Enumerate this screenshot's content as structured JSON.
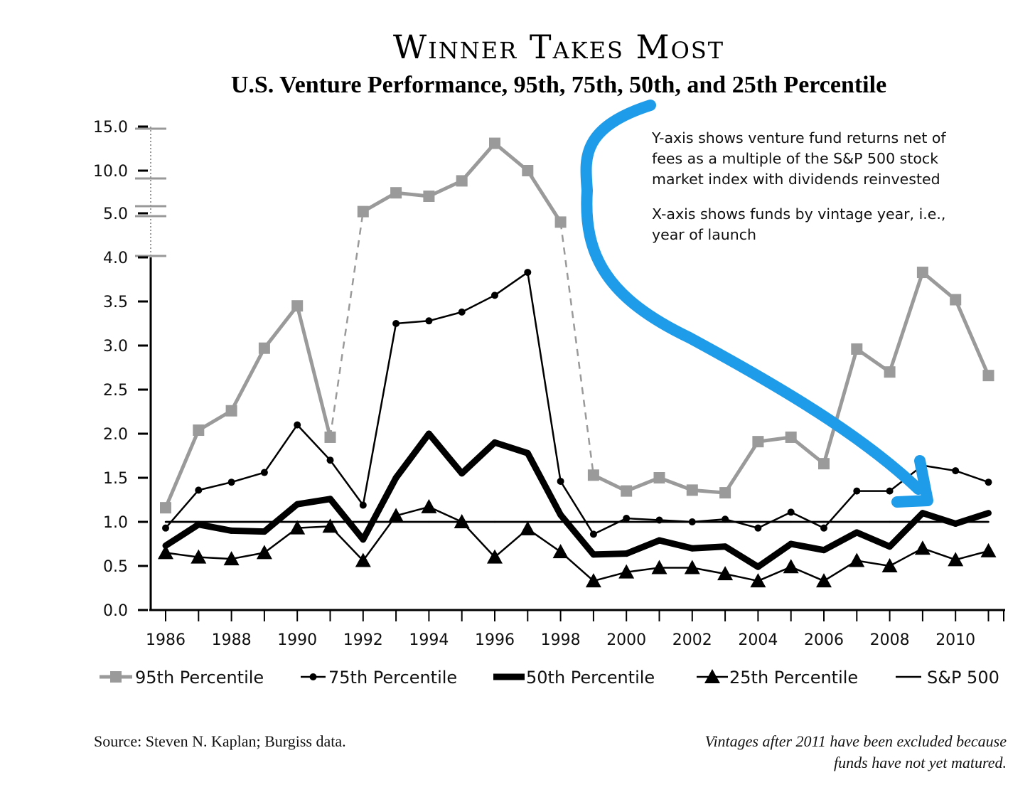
{
  "chart_data": {
    "type": "line",
    "title": "Winner Takes Most",
    "subtitle": "U.S. Venture Performance, 95th, 75th, 50th, and 25th Percentile",
    "xlabel": "",
    "ylabel": "",
    "x": [
      1986,
      1987,
      1988,
      1989,
      1990,
      1991,
      1992,
      1993,
      1994,
      1995,
      1996,
      1997,
      1998,
      1999,
      2000,
      2001,
      2002,
      2003,
      2004,
      2005,
      2006,
      2007,
      2008,
      2009,
      2010,
      2011
    ],
    "x_tick_labels": [
      "1986",
      "1988",
      "1990",
      "1992",
      "1994",
      "1996",
      "1998",
      "2000",
      "2002",
      "2004",
      "2006",
      "2008",
      "2010"
    ],
    "y_tick_labels": [
      "0.0",
      "0.5",
      "1.0",
      "1.5",
      "2.0",
      "2.5",
      "3.0",
      "3.5",
      "4.0",
      "5.0",
      "10.0",
      "15.0"
    ],
    "y_scale_note": "axis broken above 4.0; 5.0, 10.0 and 15.0 on compressed scale",
    "ylim": [
      0,
      15
    ],
    "series": [
      {
        "name": "95th Percentile",
        "color": "#9a9a9a",
        "marker": "square",
        "values": [
          1.16,
          2.04,
          2.26,
          2.97,
          3.45,
          1.96,
          5.2,
          7.4,
          7.0,
          8.8,
          13.1,
          10.0,
          4.8,
          1.53,
          1.35,
          1.5,
          1.36,
          1.33,
          1.91,
          1.96,
          1.66,
          2.96,
          2.7,
          3.83,
          3.52,
          2.66
        ],
        "dashed_segments": [
          "1991-1992",
          "1998-1999"
        ]
      },
      {
        "name": "75th Percentile",
        "color": "#000000",
        "marker": "circle",
        "values": [
          0.93,
          1.36,
          1.45,
          1.56,
          2.1,
          1.7,
          1.19,
          3.25,
          3.28,
          3.38,
          3.57,
          3.83,
          1.46,
          0.86,
          1.04,
          1.02,
          1.0,
          1.03,
          0.93,
          1.11,
          0.93,
          1.35,
          1.35,
          1.64,
          1.58,
          1.45
        ]
      },
      {
        "name": "50th Percentile",
        "color": "#000000",
        "marker": "none",
        "values": [
          0.73,
          0.97,
          0.9,
          0.89,
          1.2,
          1.26,
          0.8,
          1.5,
          2.0,
          1.55,
          1.9,
          1.78,
          1.08,
          0.63,
          0.64,
          0.79,
          0.7,
          0.72,
          0.49,
          0.75,
          0.68,
          0.88,
          0.72,
          1.1,
          0.98,
          1.1
        ]
      },
      {
        "name": "25th Percentile",
        "color": "#000000",
        "marker": "triangle",
        "values": [
          0.65,
          0.6,
          0.58,
          0.65,
          0.93,
          0.95,
          0.56,
          1.07,
          1.17,
          1.0,
          0.6,
          0.92,
          0.66,
          0.33,
          0.43,
          0.48,
          0.48,
          0.41,
          0.33,
          0.49,
          0.33,
          0.56,
          0.5,
          0.7,
          0.57,
          0.67
        ]
      },
      {
        "name": "S&P 500",
        "color": "#000000",
        "marker": "none",
        "values": [
          1.0,
          1.0,
          1.0,
          1.0,
          1.0,
          1.0,
          1.0,
          1.0,
          1.0,
          1.0,
          1.0,
          1.0,
          1.0,
          1.0,
          1.0,
          1.0,
          1.0,
          1.0,
          1.0,
          1.0,
          1.0,
          1.0,
          1.0,
          1.0,
          1.0,
          1.0
        ]
      }
    ],
    "legend": [
      "95th Percentile",
      "75th Percentile",
      "50th Percentile",
      "25th Percentile",
      "S&P 500"
    ],
    "legend_position": "bottom",
    "annotation_lines": [
      "Y-axis shows venture fund returns net of",
      "fees as a multiple of the S&P 500 stock",
      "market index with dividends reinvested",
      "X-axis shows funds by vintage year, i.e.,",
      "year of launch"
    ],
    "annotation_arrow_color": "#1e9be9",
    "source": "Source: Steven N. Kaplan; Burgiss data.",
    "footnote_lines": [
      "Vintages after 2011 have been excluded because",
      "funds have not yet matured."
    ]
  }
}
